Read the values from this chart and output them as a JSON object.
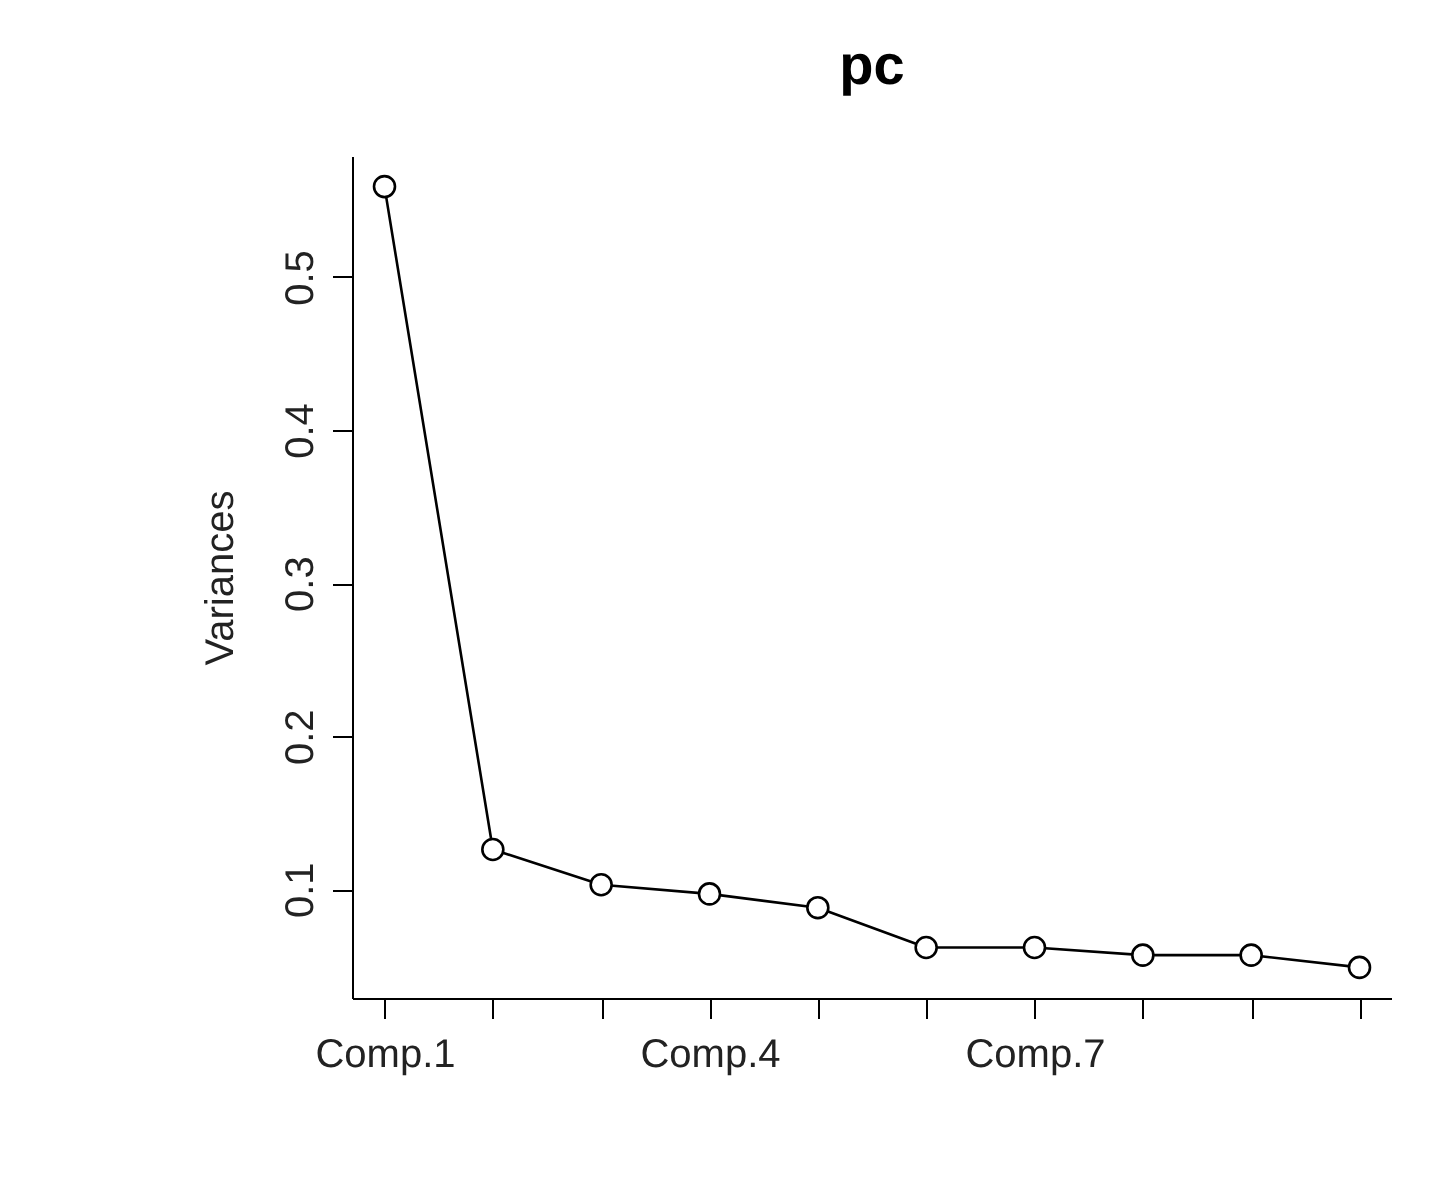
{
  "chart_data": {
    "type": "line",
    "title": "pc",
    "ylabel": "Variances",
    "categories": [
      "Comp.1",
      null,
      null,
      "Comp.4",
      null,
      null,
      "Comp.7",
      null,
      null,
      null
    ],
    "series": [
      {
        "color": "#000000",
        "values": [
          0.559,
          0.126,
          0.103,
          0.097,
          0.088,
          0.062,
          0.062,
          0.057,
          0.057,
          0.049
        ]
      }
    ],
    "ylim": [
      0.029,
      0.579
    ],
    "yticks": [
      0.1,
      0.2,
      0.3,
      0.4,
      0.5
    ],
    "marker": "circle",
    "line_style": "solid",
    "grid": false
  }
}
